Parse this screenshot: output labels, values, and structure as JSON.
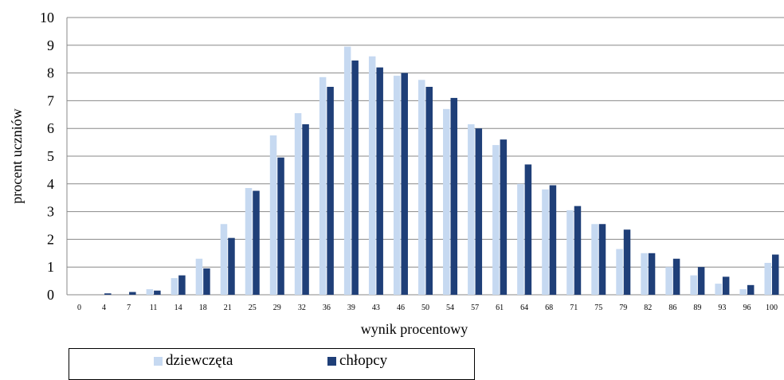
{
  "chart_data": {
    "type": "bar",
    "categories": [
      "0",
      "4",
      "7",
      "11",
      "14",
      "18",
      "21",
      "25",
      "29",
      "32",
      "36",
      "39",
      "43",
      "46",
      "50",
      "54",
      "57",
      "61",
      "64",
      "68",
      "71",
      "75",
      "79",
      "82",
      "86",
      "89",
      "93",
      "96",
      "100"
    ],
    "series": [
      {
        "name": "dziewczęta",
        "color": "#c6d9f1",
        "values": [
          0,
          0,
          0,
          0.2,
          0.6,
          1.3,
          2.55,
          3.85,
          5.75,
          6.55,
          7.85,
          8.95,
          8.6,
          7.9,
          7.75,
          6.7,
          6.15,
          5.4,
          4.0,
          3.8,
          3.05,
          2.55,
          1.65,
          1.5,
          1.0,
          0.7,
          0.4,
          0.2,
          1.15
        ]
      },
      {
        "name": "chłopcy",
        "color": "#1f3f78",
        "values": [
          0,
          0.05,
          0.1,
          0.15,
          0.7,
          0.95,
          2.05,
          3.75,
          4.95,
          6.15,
          7.5,
          8.45,
          8.2,
          8.0,
          7.5,
          7.1,
          6.0,
          5.6,
          4.7,
          3.95,
          3.2,
          2.55,
          2.35,
          1.5,
          1.3,
          1.0,
          0.65,
          0.35,
          1.45
        ]
      }
    ],
    "xlabel": "wynik procentowy",
    "ylabel": "procent uczniów",
    "ylim": [
      0,
      10
    ],
    "yticks": [
      "0",
      "1",
      "2",
      "3",
      "4",
      "5",
      "6",
      "7",
      "8",
      "9",
      "10"
    ],
    "grid": true,
    "legend": "bottom"
  }
}
